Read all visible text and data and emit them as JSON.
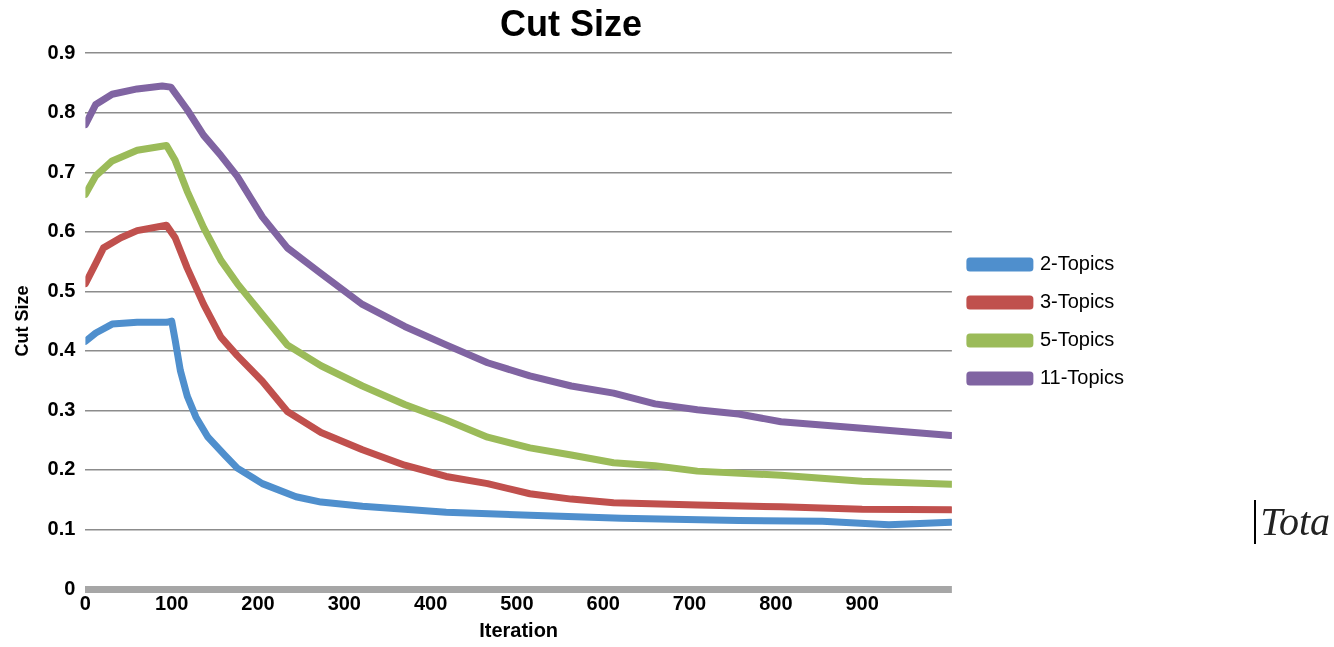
{
  "chart_data": {
    "type": "line",
    "title": "Cut Size",
    "xlabel": "Iteration",
    "ylabel": "Cut Size",
    "annotations": [
      "Tota"
    ],
    "xlim": [
      0,
      1004
    ],
    "xticks": [
      0,
      100,
      200,
      300,
      400,
      500,
      600,
      700,
      800,
      900
    ],
    "ylim": [
      0,
      0.9
    ],
    "yticks": [
      0,
      0.1,
      0.2,
      0.3,
      0.4,
      0.5,
      0.6,
      0.7,
      0.8,
      0.9
    ],
    "grid": "y",
    "legend": "right",
    "marker": "none",
    "line_style": "solid",
    "series": [
      {
        "name": "2-Topics",
        "color": "#4f8fcd",
        "x": [
          0,
          12,
          31,
          60,
          94,
          100,
          104,
          110,
          118,
          128,
          142,
          162,
          176,
          205,
          244,
          273,
          321,
          370,
          418,
          515,
          621,
          757,
          854,
          931,
          1003
        ],
        "values": [
          0.416,
          0.43,
          0.445,
          0.448,
          0.448,
          0.45,
          0.418,
          0.367,
          0.324,
          0.289,
          0.255,
          0.224,
          0.203,
          0.177,
          0.155,
          0.146,
          0.139,
          0.134,
          0.129,
          0.124,
          0.119,
          0.115,
          0.114,
          0.108,
          0.112
        ]
      },
      {
        "name": "3-Topics",
        "color": "#c0504d",
        "x": [
          0,
          12,
          21,
          41,
          60,
          94,
          104,
          118,
          137,
          157,
          176,
          205,
          234,
          273,
          321,
          370,
          418,
          466,
          515,
          563,
          612,
          709,
          806,
          900,
          1003
        ],
        "values": [
          0.513,
          0.547,
          0.573,
          0.59,
          0.602,
          0.611,
          0.59,
          0.539,
          0.478,
          0.423,
          0.392,
          0.349,
          0.298,
          0.263,
          0.234,
          0.208,
          0.189,
          0.177,
          0.16,
          0.151,
          0.145,
          0.141,
          0.138,
          0.134,
          0.133
        ]
      },
      {
        "name": "5-Topics",
        "color": "#9bbb59",
        "x": [
          0,
          12,
          31,
          60,
          94,
          104,
          118,
          137,
          157,
          176,
          205,
          234,
          273,
          321,
          370,
          418,
          466,
          515,
          563,
          612,
          660,
          709,
          806,
          900,
          1003
        ],
        "values": [
          0.663,
          0.694,
          0.719,
          0.737,
          0.745,
          0.72,
          0.668,
          0.607,
          0.552,
          0.513,
          0.461,
          0.41,
          0.375,
          0.341,
          0.31,
          0.284,
          0.255,
          0.237,
          0.225,
          0.212,
          0.207,
          0.198,
          0.191,
          0.181,
          0.176
        ]
      },
      {
        "name": "11-Topics",
        "color": "#8064a2",
        "x": [
          0,
          12,
          31,
          60,
          89,
          99,
          118,
          137,
          157,
          176,
          205,
          234,
          273,
          321,
          370,
          418,
          466,
          515,
          563,
          612,
          660,
          709,
          757,
          806,
          900,
          1003
        ],
        "values": [
          0.78,
          0.814,
          0.831,
          0.84,
          0.845,
          0.843,
          0.805,
          0.762,
          0.728,
          0.693,
          0.625,
          0.573,
          0.53,
          0.478,
          0.441,
          0.41,
          0.38,
          0.358,
          0.341,
          0.329,
          0.311,
          0.301,
          0.294,
          0.281,
          0.27,
          0.258
        ]
      }
    ]
  }
}
